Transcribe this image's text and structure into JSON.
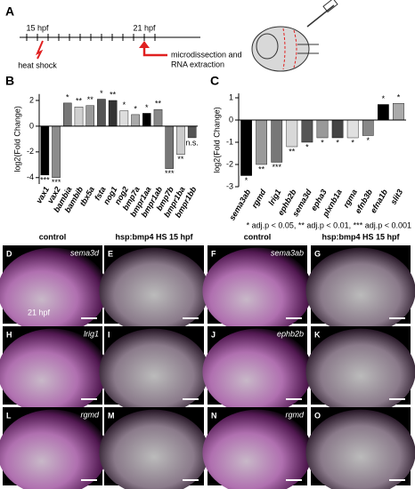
{
  "panel_letters": [
    "A",
    "B",
    "C"
  ],
  "schematic": {
    "time_start": "15 hpf",
    "time_end": "21 hpf",
    "event_start": "heat shock",
    "event_end": [
      "microdissection and",
      "RNA extraction"
    ]
  },
  "chart_data": [
    {
      "type": "bar",
      "ylabel": "log2(Fold Change)",
      "categories": [
        "vax1",
        "vax2",
        "bambia",
        "bambib",
        "tbx5a",
        "fsta",
        "nog1",
        "nog2",
        "bmp7a",
        "bmpr1aa",
        "bmpr1ab",
        "bmp7b",
        "bmpr1ba",
        "bmpr1bb"
      ],
      "values": [
        -3.8,
        -4.0,
        1.8,
        1.5,
        1.6,
        2.1,
        2.0,
        1.2,
        0.9,
        1.0,
        1.3,
        -3.3,
        -2.2,
        -0.9
      ],
      "colors": [
        "#000000",
        "#8c8c8c",
        "#777777",
        "#d0d0d0",
        "#9a9a9a",
        "#555555",
        "#333333",
        "#dddddd",
        "#aaaaaa",
        "#000000",
        "#888888",
        "#777777",
        "#cccccc",
        "#555555"
      ],
      "annotations": [
        "***",
        "***",
        "*",
        "**",
        "**",
        "*",
        "**",
        "*",
        "*",
        "*",
        "**",
        "***",
        "**",
        "n.s."
      ],
      "ylim": [
        -4.5,
        2.5
      ],
      "yticks": [
        2,
        0,
        -2,
        -4
      ]
    },
    {
      "type": "bar",
      "ylabel": "log2(Fold Change)",
      "categories": [
        "sema3ab",
        "rgmd",
        "lrig1",
        "ephb2b",
        "sema3d",
        "epha3",
        "plxnb1a",
        "rgma",
        "efnb3b",
        "efna1b",
        "slit3"
      ],
      "values": [
        -2.5,
        -2.0,
        -1.9,
        -1.2,
        -1.0,
        -0.8,
        -0.8,
        -0.8,
        -0.7,
        0.7,
        0.75
      ],
      "colors": [
        "#000000",
        "#9a9a9a",
        "#777777",
        "#d8d8d8",
        "#555555",
        "#999999",
        "#444444",
        "#e0e0e0",
        "#888888",
        "#000000",
        "#aaaaaa"
      ],
      "annotations": [
        "*",
        "**",
        "***",
        "**",
        "*",
        "*",
        "*",
        "*",
        "*",
        "*",
        "*"
      ],
      "ylim": [
        -3,
        1.2
      ],
      "yticks": [
        1,
        0,
        -1,
        -2,
        -3
      ],
      "footnote": "* adj.p < 0.05, ** adj.p < 0.01, *** adj.p < 0.001"
    }
  ],
  "micrographs": {
    "column_headers": [
      "control",
      "hsp:bmp4 HS 15 hpf",
      "control",
      "hsp:bmp4 HS 15 hpf"
    ],
    "panels": [
      {
        "letter": "D",
        "gene": "sema3d",
        "stage": "21 hpf"
      },
      {
        "letter": "E"
      },
      {
        "letter": "F",
        "gene": "sema3ab"
      },
      {
        "letter": "G"
      },
      {
        "letter": "H",
        "gene": "lrig1"
      },
      {
        "letter": "I"
      },
      {
        "letter": "J",
        "gene": "ephb2b"
      },
      {
        "letter": "K"
      },
      {
        "letter": "L",
        "gene": "rgmd"
      },
      {
        "letter": "M"
      },
      {
        "letter": "N",
        "gene": "rgmd"
      },
      {
        "letter": "O"
      }
    ]
  }
}
